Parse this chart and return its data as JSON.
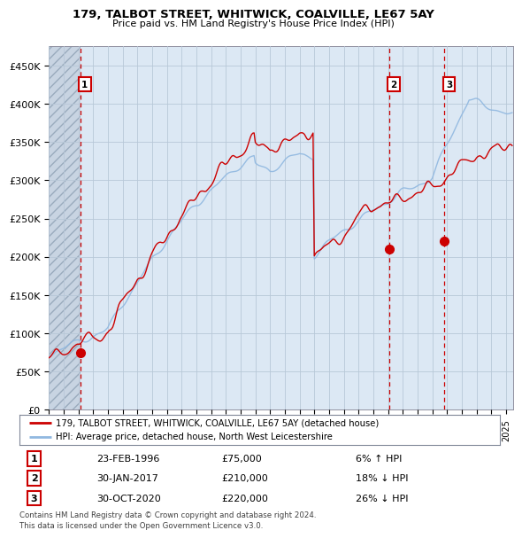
{
  "title": "179, TALBOT STREET, WHITWICK, COALVILLE, LE67 5AY",
  "subtitle": "Price paid vs. HM Land Registry's House Price Index (HPI)",
  "xlim_start": 1994.0,
  "xlim_end": 2025.5,
  "ylim": [
    0,
    475000
  ],
  "yticks": [
    0,
    50000,
    100000,
    150000,
    200000,
    250000,
    300000,
    350000,
    400000,
    450000
  ],
  "ytick_labels": [
    "£0",
    "£50K",
    "£100K",
    "£150K",
    "£200K",
    "£250K",
    "£300K",
    "£350K",
    "£400K",
    "£450K"
  ],
  "sale_dates": [
    1996.12,
    2017.08,
    2020.83
  ],
  "sale_prices": [
    75000,
    210000,
    220000
  ],
  "sale_labels": [
    "1",
    "2",
    "3"
  ],
  "hpi_color": "#90b8e0",
  "sale_color": "#cc0000",
  "legend_sale": "179, TALBOT STREET, WHITWICK, COALVILLE, LE67 5AY (detached house)",
  "legend_hpi": "HPI: Average price, detached house, North West Leicestershire",
  "table_data": [
    [
      "1",
      "23-FEB-1996",
      "£75,000",
      "6% ↑ HPI"
    ],
    [
      "2",
      "30-JAN-2017",
      "£210,000",
      "18% ↓ HPI"
    ],
    [
      "3",
      "30-OCT-2020",
      "£220,000",
      "26% ↓ HPI"
    ]
  ],
  "footnote": "Contains HM Land Registry data © Crown copyright and database right 2024.\nThis data is licensed under the Open Government Licence v3.0.",
  "plot_bg": "#dce8f4",
  "hatch_bg": "#c8d4e0"
}
